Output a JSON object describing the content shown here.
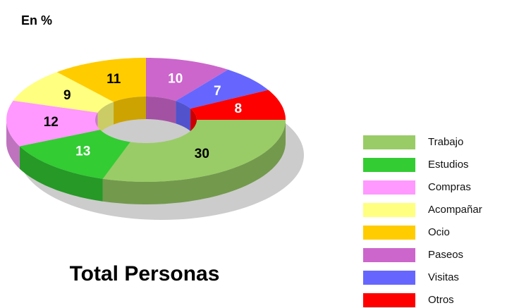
{
  "chart_data": {
    "type": "donut",
    "subtitle": "En %",
    "title": "Total Personas",
    "categories": [
      "Trabajo",
      "Estudios",
      "Compras",
      "Acompañar",
      "Ocio",
      "Paseos",
      "Visitas",
      "Otros"
    ],
    "values": [
      30,
      13,
      12,
      9,
      11,
      10,
      7,
      8
    ],
    "colors": [
      "#99cc66",
      "#33cc33",
      "#ff99ff",
      "#ffff80",
      "#ffcc00",
      "#cc66cc",
      "#6666ff",
      "#ff0000"
    ],
    "value_label_colors": [
      "#000000",
      "#ffffff",
      "#000000",
      "#000000",
      "#000000",
      "#ffffff",
      "#ffffff",
      "#ffffff"
    ],
    "legend": "right"
  }
}
